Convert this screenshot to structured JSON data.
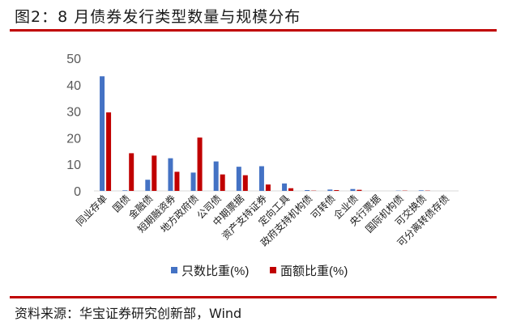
{
  "figure": {
    "title": "图2：8 月债券发行类型数量与规模分布",
    "source": "资料来源：华宝证券研究创新部，Wind"
  },
  "chart_data": {
    "type": "bar",
    "categories": [
      "同业存单",
      "国债",
      "金融债",
      "短期融资券",
      "地方政府债",
      "公司债",
      "中期票据",
      "资产支持证券",
      "定向工具",
      "政府支持机构债",
      "可转债",
      "企业债",
      "央行票据",
      "国际机构债",
      "可交换债",
      "可分离转债存债"
    ],
    "series": [
      {
        "name": "只数比重(%)",
        "color": "#4472c4",
        "values": [
          43.2,
          0.2,
          4.2,
          12.3,
          6.9,
          11.1,
          9.1,
          9.3,
          2.8,
          0.3,
          0.5,
          0.7,
          0,
          0.1,
          0.2,
          0
        ]
      },
      {
        "name": "面额比重(%)",
        "color": "#c00000",
        "values": [
          29.6,
          14.2,
          13.3,
          7.2,
          20.1,
          6.2,
          5.9,
          2.4,
          1.0,
          0.1,
          0.3,
          0.4,
          0,
          0.1,
          0.1,
          0
        ]
      }
    ],
    "yticks": [
      0,
      10,
      20,
      30,
      40,
      50
    ],
    "ylim": [
      0,
      50
    ],
    "legend_position": "bottom",
    "grid": false
  },
  "colors": {
    "rule": "#c00000",
    "axis": "#d9d9d9",
    "text": "#1a1a1a",
    "tick_text": "#595959"
  }
}
